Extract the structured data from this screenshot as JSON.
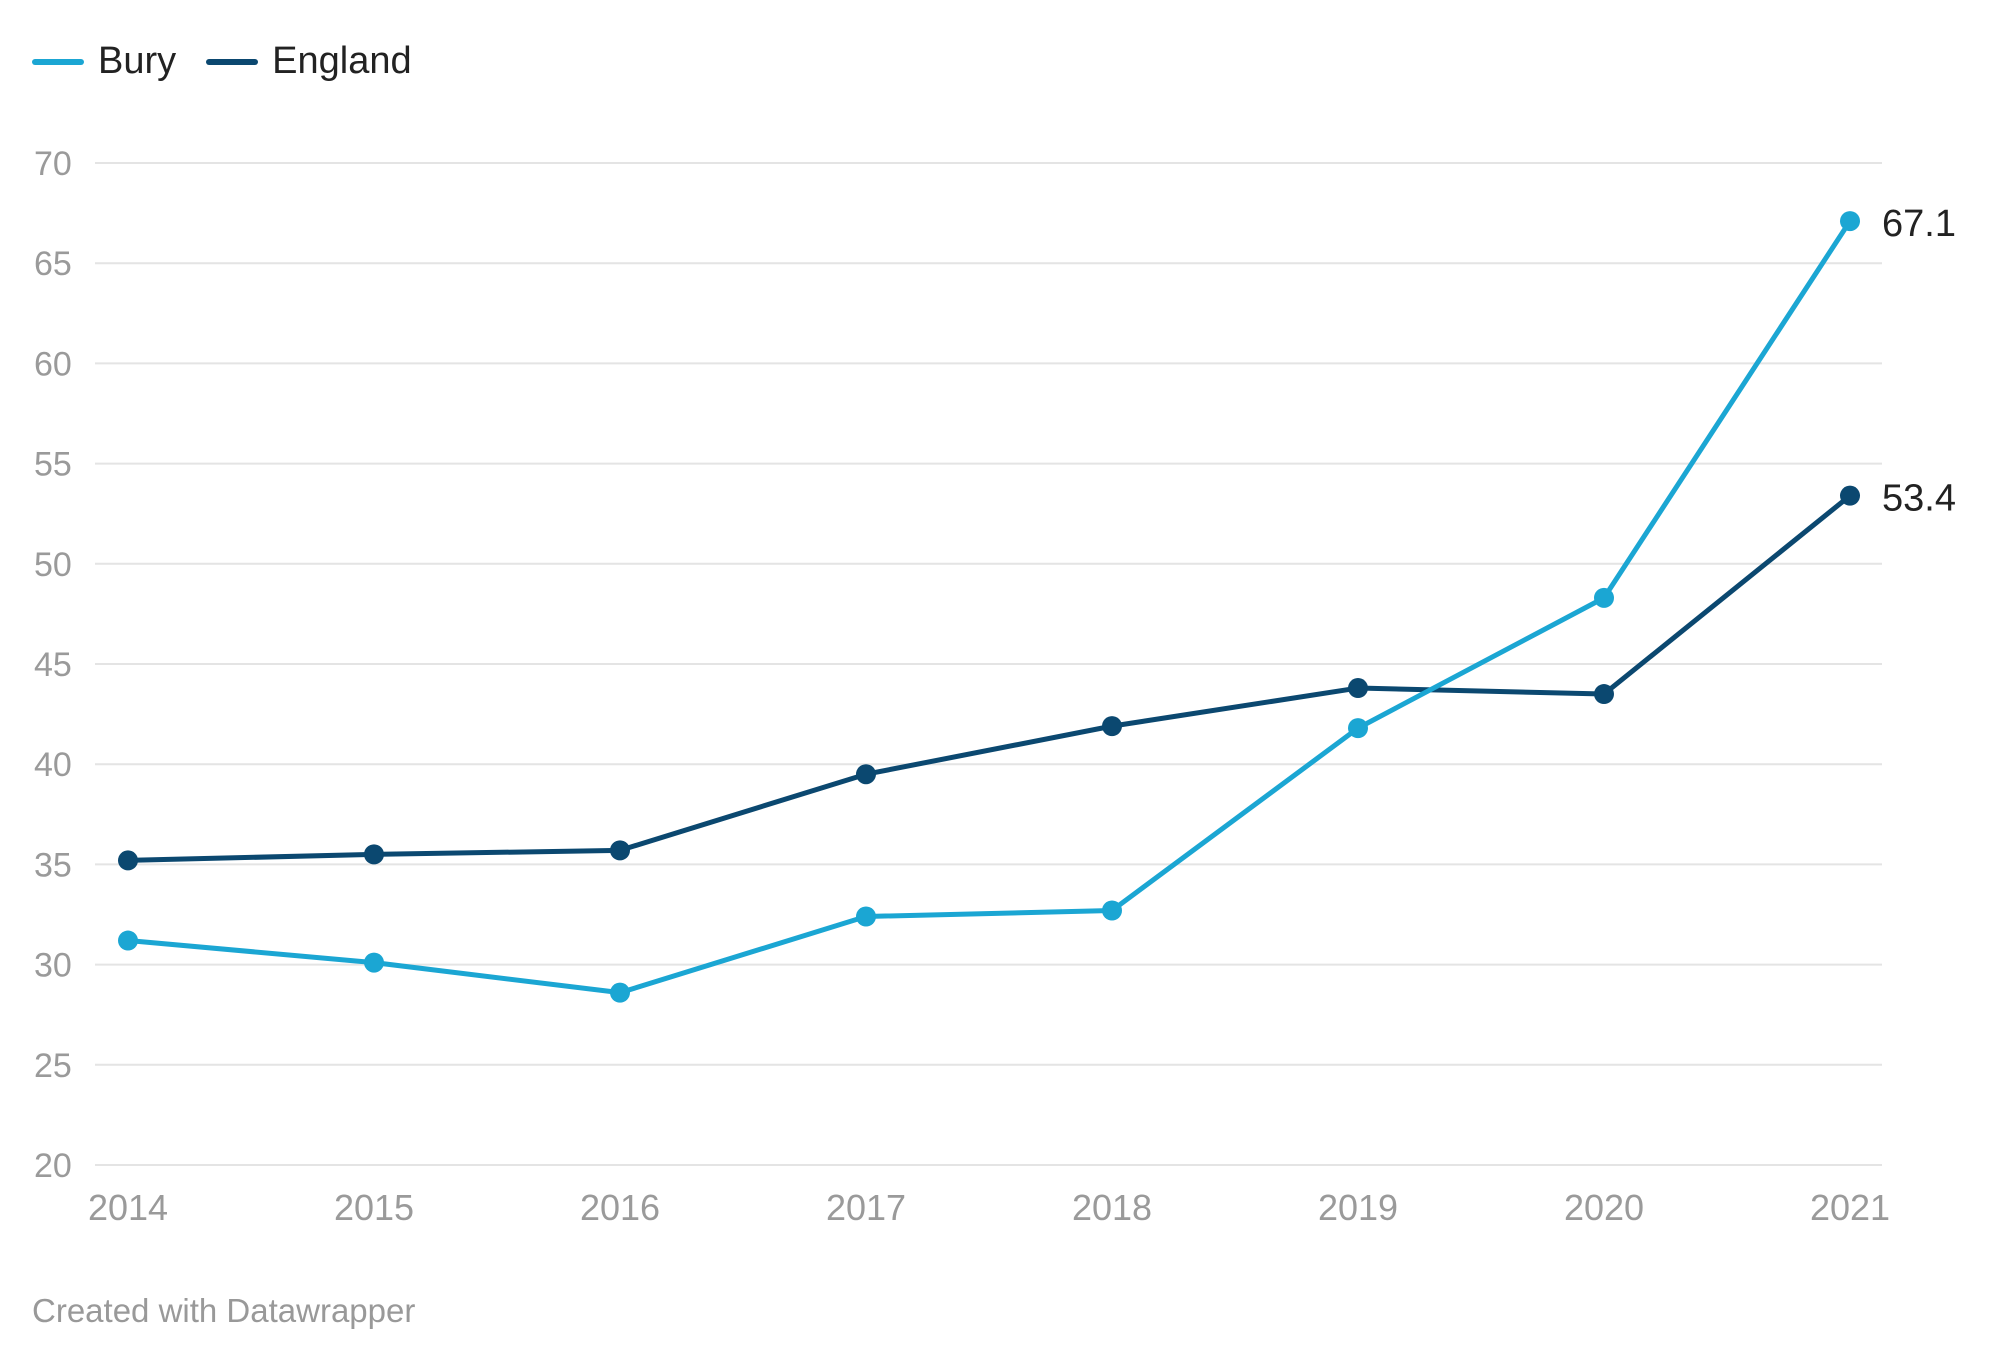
{
  "colors": {
    "bury": "#1ba6d3",
    "england": "#0b4870",
    "grid": "#e4e4e4",
    "tick_text": "#9a9a9a",
    "label_text": "#222222"
  },
  "legend": [
    {
      "name": "Bury",
      "color": "#1ba6d3"
    },
    {
      "name": "England",
      "color": "#0b4870"
    }
  ],
  "credit": "Created with Datawrapper",
  "chart_data": {
    "type": "line",
    "title": "",
    "xlabel": "",
    "ylabel": "",
    "x": [
      "2014",
      "2015",
      "2016",
      "2017",
      "2018",
      "2019",
      "2020",
      "2021"
    ],
    "ylim": [
      20,
      70
    ],
    "yticks": [
      "20",
      "25",
      "30",
      "35",
      "40",
      "45",
      "50",
      "55",
      "60",
      "65",
      "70"
    ],
    "grid": true,
    "legend_position": "top-left",
    "series": [
      {
        "name": "Bury",
        "color": "#1ba6d3",
        "values": [
          31.2,
          30.1,
          28.6,
          32.4,
          32.7,
          41.8,
          48.3,
          67.1
        ],
        "end_label": "67.1"
      },
      {
        "name": "England",
        "color": "#0b4870",
        "values": [
          35.2,
          35.5,
          35.7,
          39.5,
          41.9,
          43.8,
          43.5,
          53.4
        ],
        "end_label": "53.4"
      }
    ]
  }
}
